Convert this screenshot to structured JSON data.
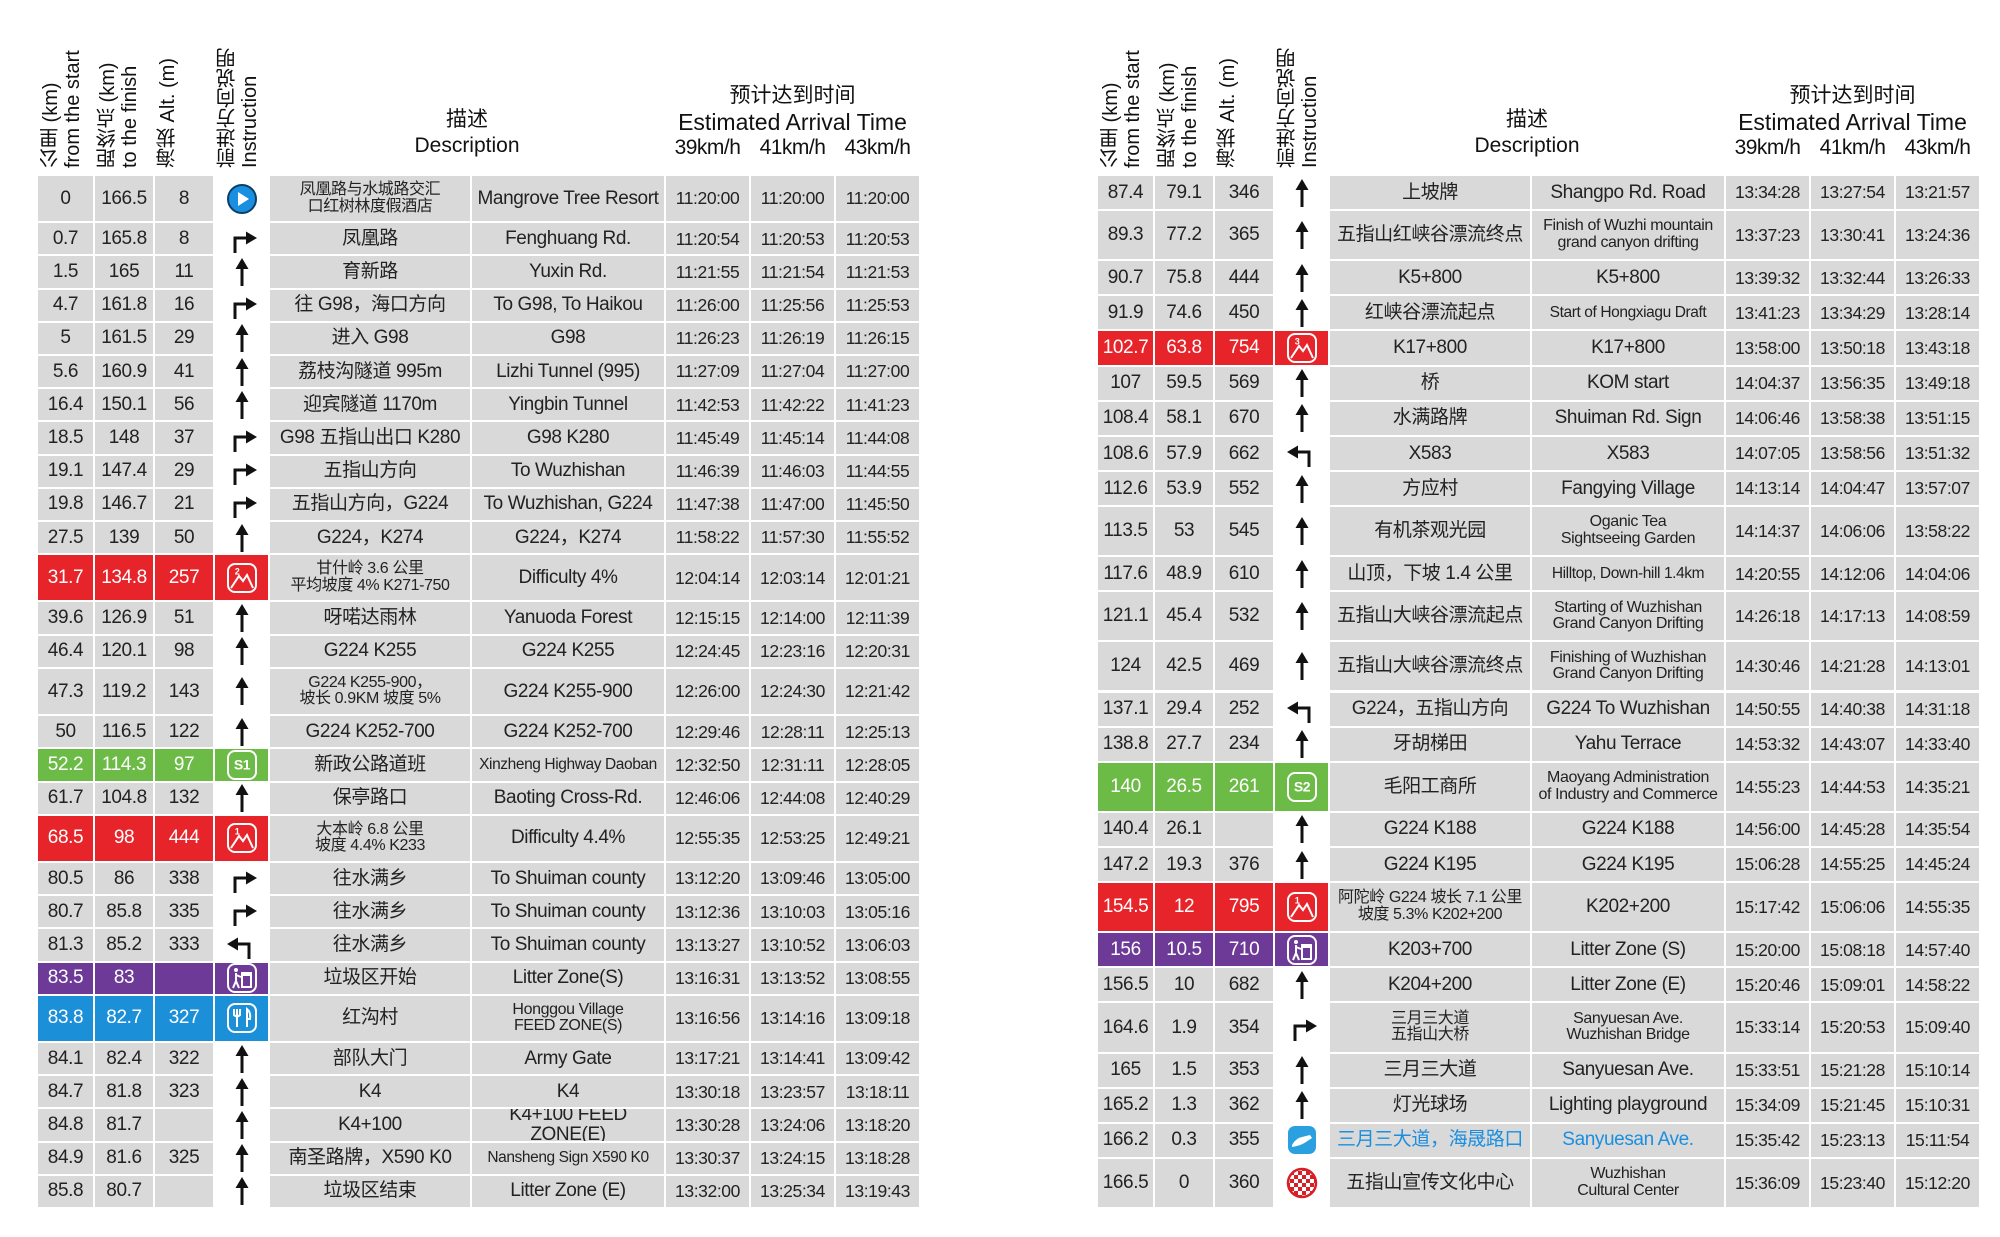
{
  "header": {
    "km_start": "公里 (km)\nfrom the start",
    "km_finish": "距终点 (km)\nto the finish",
    "alt": "海拔 Alt. (m)",
    "instruction": "前进方向说明\nInstruction",
    "desc_cn": "描述",
    "desc_en": "Description",
    "eta_cn": "预计达到时间",
    "eta_en": "Estimated Arrival Time",
    "speeds": [
      "39km/h",
      "41km/h",
      "43km/h"
    ]
  },
  "tables": [
    {
      "rows": [
        [
          0,
          166.5,
          8,
          null,
          "凤凰路与水城路交汇\n口红树林度假酒店",
          "Mangrove Tree Resort",
          "11:20:00",
          "11:20:00",
          "11:20:00"
        ],
        [
          0.7,
          165.8,
          8,
          null,
          "凤凰路",
          "Fenghuang Rd.",
          "11:20:54",
          "11:20:53",
          "11:20:53"
        ],
        [
          1.5,
          165,
          11,
          null,
          "育新路",
          "Yuxin Rd.",
          "11:21:55",
          "11:21:54",
          "11:21:53"
        ],
        [
          4.7,
          161.8,
          16,
          null,
          "往 G98，海口方向",
          "To G98, To Haikou",
          "11:26:00",
          "11:25:56",
          "11:25:53"
        ],
        [
          5,
          161.5,
          29,
          null,
          "进入 G98",
          "G98",
          "11:26:23",
          "11:26:19",
          "11:26:15"
        ],
        [
          5.6,
          160.9,
          41,
          null,
          "荔枝沟隧道 995m",
          "Lizhi Tunnel (995)",
          "11:27:09",
          "11:27:04",
          "11:27:00"
        ],
        [
          16.4,
          150.1,
          56,
          null,
          "迎宾隧道 1170m",
          "Yingbin Tunnel",
          "11:42:53",
          "11:42:22",
          "11:41:23"
        ],
        [
          18.5,
          148,
          37,
          null,
          "G98 五指山出口 K280",
          "G98    K280",
          "11:45:49",
          "11:45:14",
          "11:44:08"
        ],
        [
          19.1,
          147.4,
          29,
          null,
          "五指山方向",
          "To Wuzhishan",
          "11:46:39",
          "11:46:03",
          "11:44:55"
        ],
        [
          19.8,
          146.7,
          21,
          null,
          "五指山方向，G224",
          "To Wuzhishan, G224",
          "11:47:38",
          "11:47:00",
          "11:45:50"
        ],
        [
          27.5,
          139,
          50,
          null,
          "G224，K274",
          "G224，K274",
          "11:58:22",
          "11:57:30",
          "11:55:52"
        ],
        [
          31.7,
          134.8,
          257,
          "2",
          "甘什岭 3.6 公里\n平均坡度 4%  K271-750",
          "Difficulty 4%",
          "12:04:14",
          "12:03:14",
          "12:01:21"
        ],
        [
          39.6,
          126.9,
          51,
          null,
          "呀喏达雨林",
          "Yanuoda Forest",
          "12:15:15",
          "12:14:00",
          "12:11:39"
        ],
        [
          46.4,
          120.1,
          98,
          null,
          "G224   K255",
          "G224   K255",
          "12:24:45",
          "12:23:16",
          "12:20:31"
        ],
        [
          47.3,
          119.2,
          143,
          null,
          "G224   K255-900，\n坡长 0.9KM 坡度 5%",
          "G224   K255-900",
          "12:26:00",
          "12:24:30",
          "12:21:42"
        ],
        [
          50,
          116.5,
          122,
          null,
          "G224   K252-700",
          "G224   K252-700",
          "12:29:46",
          "12:28:11",
          "12:25:13"
        ],
        [
          52.2,
          114.3,
          97,
          "S1",
          "新政公路道班",
          "Xinzheng Highway Daoban",
          "12:32:50",
          "12:31:11",
          "12:28:05"
        ],
        [
          61.7,
          104.8,
          132,
          null,
          "保亭路口",
          "Baoting Cross-Rd.",
          "12:46:06",
          "12:44:08",
          "12:40:29"
        ],
        [
          68.5,
          98,
          444,
          "1",
          "大本岭 6.8 公里\n坡度 4.4%   K233",
          "Difficulty 4.4%",
          "12:55:35",
          "12:53:25",
          "12:49:21"
        ],
        [
          80.5,
          86,
          338,
          null,
          "往水满乡",
          "To Shuiman county",
          "13:12:20",
          "13:09:46",
          "13:05:00"
        ],
        [
          80.7,
          85.8,
          335,
          null,
          "往水满乡",
          "To Shuiman county",
          "13:12:36",
          "13:10:03",
          "13:05:16"
        ],
        [
          81.3,
          85.2,
          333,
          null,
          "往水满乡",
          "To Shuiman county",
          "13:13:27",
          "13:10:52",
          "13:06:03"
        ],
        [
          83.5,
          83,
          null,
          null,
          "垃圾区开始",
          "Litter Zone(S)",
          "13:16:31",
          "13:13:52",
          "13:08:55"
        ],
        [
          83.8,
          82.7,
          327,
          null,
          "红沟村",
          "Honggou Village\nFEED ZONE(S)",
          "13:16:56",
          "13:14:16",
          "13:09:18"
        ],
        [
          84.1,
          82.4,
          322,
          null,
          "部队大门",
          "Army Gate",
          "13:17:21",
          "13:14:41",
          "13:09:42"
        ],
        [
          84.7,
          81.8,
          323,
          null,
          "K4",
          "K4",
          "13:30:18",
          "13:23:57",
          "13:18:11"
        ],
        [
          84.8,
          81.7,
          null,
          null,
          "K4+100",
          "K4+100 FEED ZONE(E)",
          "13:30:28",
          "13:24:06",
          "13:18:20"
        ],
        [
          84.9,
          81.6,
          325,
          null,
          "南圣路牌，X590 K0",
          "Nansheng Sign  X590 K0",
          "13:30:37",
          "13:24:15",
          "13:18:28"
        ],
        [
          85.8,
          80.7,
          null,
          null,
          "垃圾区结束",
          "Litter Zone (E)",
          "13:32:00",
          "13:25:34",
          "13:19:43"
        ]
      ]
    },
    {
      "rows": [
        [
          87.4,
          79.1,
          346,
          null,
          "上坡牌",
          "Shangpo Rd. Road",
          "13:34:28",
          "13:27:54",
          "13:21:57"
        ],
        [
          89.3,
          77.2,
          365,
          null,
          "五指山红峡谷漂流终点",
          "Finish of Wuzhi mountain\ngrand canyon drifting",
          "13:37:23",
          "13:30:41",
          "13:24:36"
        ],
        [
          90.7,
          75.8,
          444,
          null,
          "K5+800",
          "K5+800",
          "13:39:32",
          "13:32:44",
          "13:26:33"
        ],
        [
          91.9,
          74.6,
          450,
          null,
          "红峡谷漂流起点",
          "Start of Hongxiagu Draft",
          "13:41:23",
          "13:34:29",
          "13:28:14"
        ],
        [
          102.7,
          63.8,
          754,
          "3",
          "K17+800",
          "K17+800",
          "13:58:00",
          "13:50:18",
          "13:43:18"
        ],
        [
          107,
          59.5,
          569,
          null,
          "桥",
          "KOM start",
          "14:04:37",
          "13:56:35",
          "13:49:18"
        ],
        [
          108.4,
          58.1,
          670,
          null,
          "水满路牌",
          "Shuiman Rd. Sign",
          "14:06:46",
          "13:58:38",
          "13:51:15"
        ],
        [
          108.6,
          57.9,
          662,
          null,
          "X583",
          "X583",
          "14:07:05",
          "13:58:56",
          "13:51:32"
        ],
        [
          112.6,
          53.9,
          552,
          null,
          "方应村",
          "Fangying Village",
          "14:13:14",
          "14:04:47",
          "13:57:07"
        ],
        [
          113.5,
          53,
          545,
          null,
          "有机茶观光园",
          "Oganic Tea\nSightseeing Garden",
          "14:14:37",
          "14:06:06",
          "13:58:22"
        ],
        [
          117.6,
          48.9,
          610,
          null,
          "山顶，下坡 1.4 公里",
          "Hilltop, Down-hill 1.4km",
          "14:20:55",
          "14:12:06",
          "14:04:06"
        ],
        [
          121.1,
          45.4,
          532,
          null,
          "五指山大峡谷漂流起点",
          "Starting of Wuzhishan\nGrand Canyon Drifting",
          "14:26:18",
          "14:17:13",
          "14:08:59"
        ],
        [
          124,
          42.5,
          469,
          null,
          "五指山大峡谷漂流终点",
          "Finishing of Wuzhishan\nGrand Canyon Drifting",
          "14:30:46",
          "14:21:28",
          "14:13:01"
        ],
        [
          137.1,
          29.4,
          252,
          null,
          "G224，五指山方向",
          "G224 To Wuzhishan",
          "14:50:55",
          "14:40:38",
          "14:31:18"
        ],
        [
          138.8,
          27.7,
          234,
          null,
          "牙胡梯田",
          "Yahu Terrace",
          "14:53:32",
          "14:43:07",
          "14:33:40"
        ],
        [
          140,
          26.5,
          261,
          "S2",
          "毛阳工商所",
          "Maoyang Administration\nof Industry and Commerce",
          "14:55:23",
          "14:44:53",
          "14:35:21"
        ],
        [
          140.4,
          26.1,
          null,
          null,
          "G224   K188",
          "G224 K188",
          "14:56:00",
          "14:45:28",
          "14:35:54"
        ],
        [
          147.2,
          19.3,
          376,
          null,
          "G224   K195",
          "G224 K195",
          "15:06:28",
          "14:55:25",
          "14:45:24"
        ],
        [
          154.5,
          12,
          795,
          "1",
          "阿陀岭 G224 坡长 7.1 公里\n坡度 5.3%   K202+200",
          "K202+200",
          "15:17:42",
          "15:06:06",
          "14:55:35"
        ],
        [
          156,
          10.5,
          710,
          null,
          "K203+700",
          "Litter Zone (S)",
          "15:20:00",
          "15:08:18",
          "14:57:40"
        ],
        [
          156.5,
          10,
          682,
          null,
          "K204+200",
          "Litter Zone (E)",
          "15:20:46",
          "15:09:01",
          "14:58:22"
        ],
        [
          164.6,
          1.9,
          354,
          null,
          "三月三大道\n五指山大桥",
          "Sanyuesan Ave.\nWuzhishan Bridge",
          "15:33:14",
          "15:20:53",
          "15:09:40"
        ],
        [
          165,
          1.5,
          353,
          null,
          "三月三大道",
          "Sanyuesan Ave.",
          "15:33:51",
          "15:21:28",
          "15:10:14"
        ],
        [
          165.2,
          1.3,
          362,
          null,
          "灯光球场",
          "Lighting playground",
          "15:34:09",
          "15:21:45",
          "15:10:31"
        ],
        [
          166.2,
          0.3,
          355,
          null,
          "三月三大道，海晟路口",
          "Sanyuesan Ave.",
          "15:35:42",
          "15:23:13",
          "15:11:54"
        ],
        [
          166.5,
          0,
          360,
          null,
          "五指山宣传文化中心",
          "Wuzhishan\nCultural Center",
          "15:36:09",
          "15:23:40",
          "15:12:20"
        ]
      ]
    }
  ]
}
